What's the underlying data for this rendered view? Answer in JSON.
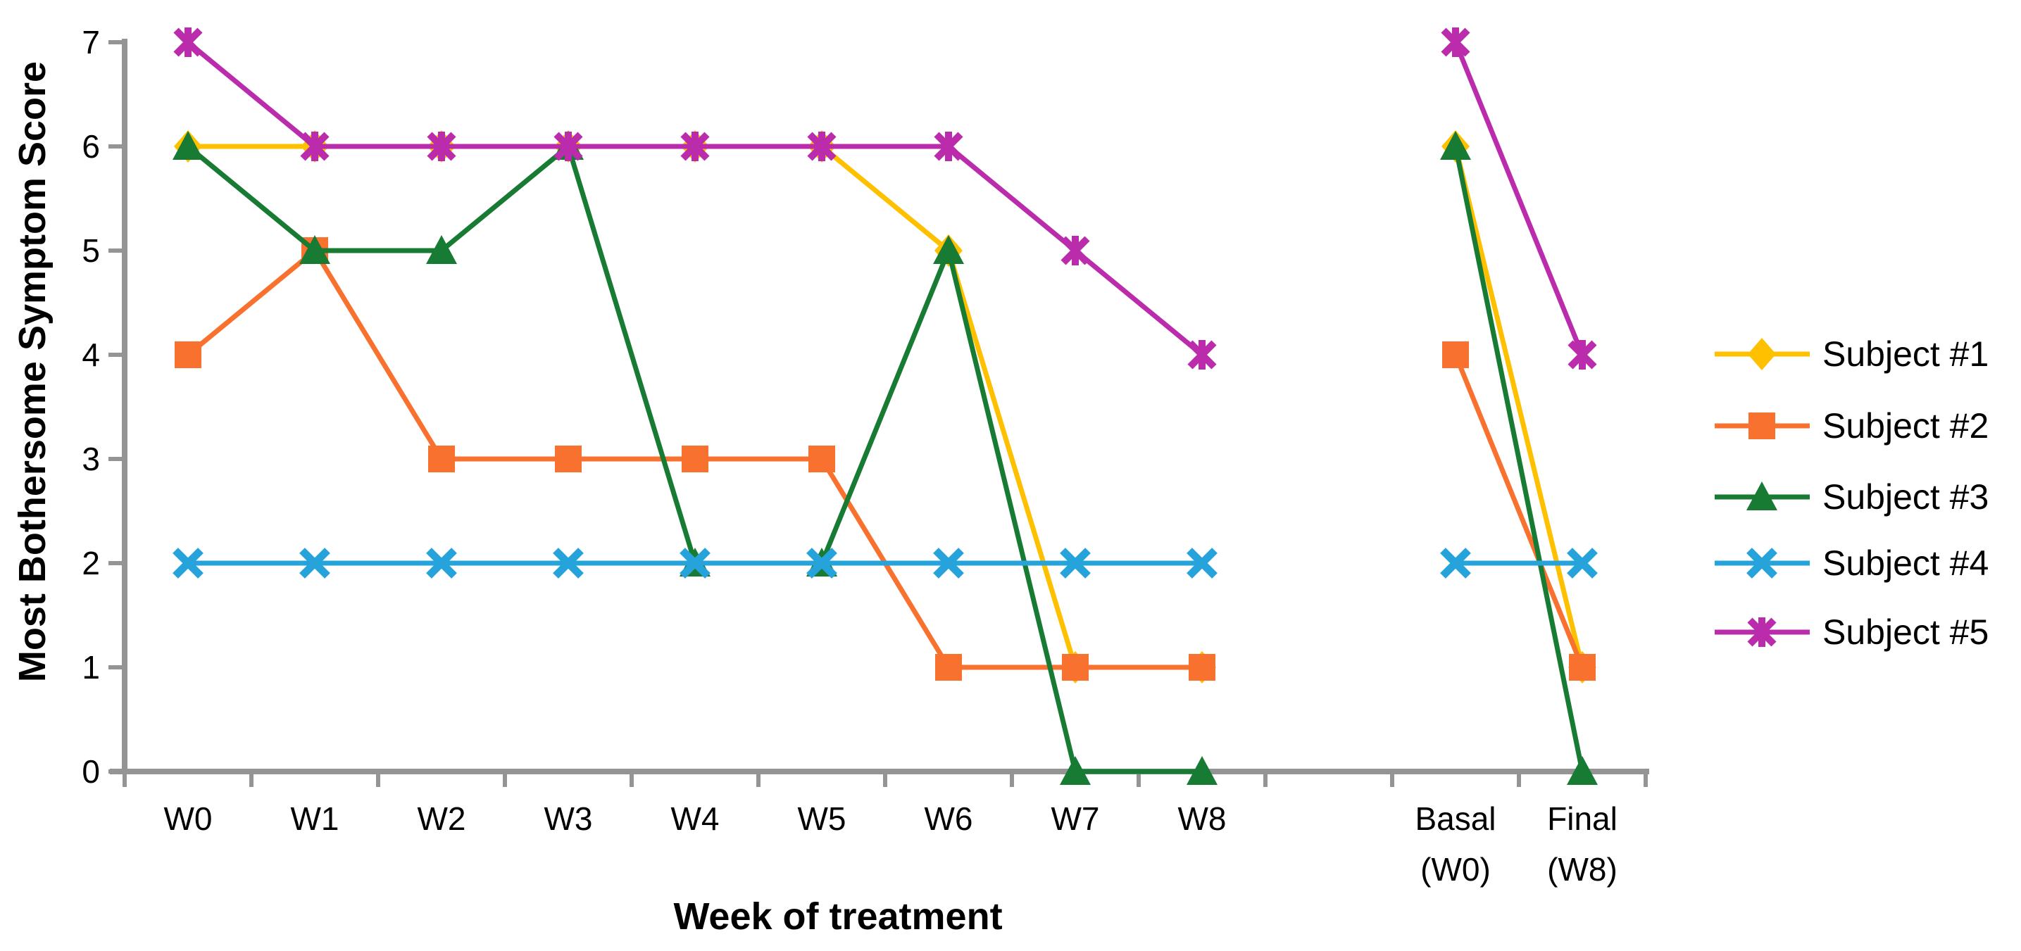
{
  "figure": {
    "background_color": "#FFFFFF",
    "axis_color": "#949494",
    "text_color": "#000000"
  },
  "chart_data": {
    "type": "line",
    "title": "",
    "xlabel": "Week of treatment",
    "ylabel": "Most Bothersome Symptom Score",
    "ylim": [
      0,
      7
    ],
    "yticks": [
      0,
      1,
      2,
      3,
      4,
      5,
      6,
      7
    ],
    "grid": false,
    "legend_position": "right",
    "categories": [
      "W0",
      "W1",
      "W2",
      "W3",
      "W4",
      "W5",
      "W6",
      "W7",
      "W8"
    ],
    "summary_categories": [
      {
        "line1": "Basal",
        "line2": "(W0)"
      },
      {
        "line1": "Final",
        "line2": "(W8)"
      }
    ],
    "series": [
      {
        "name": "Subject #1",
        "color": "#FFC000",
        "marker": "diamond",
        "values": [
          6,
          6,
          6,
          6,
          6,
          6,
          5,
          1,
          1
        ],
        "basal_final": [
          6,
          1
        ]
      },
      {
        "name": "Subject #2",
        "color": "#F9712E",
        "marker": "square",
        "values": [
          4,
          5,
          3,
          3,
          3,
          3,
          1,
          1,
          1
        ],
        "basal_final": [
          4,
          1
        ]
      },
      {
        "name": "Subject #3",
        "color": "#177B33",
        "marker": "triangle",
        "values": [
          6,
          5,
          5,
          6,
          2,
          2,
          5,
          0,
          0
        ],
        "basal_final": [
          6,
          0
        ]
      },
      {
        "name": "Subject #4",
        "color": "#27A3DB",
        "marker": "x",
        "values": [
          2,
          2,
          2,
          2,
          2,
          2,
          2,
          2,
          2
        ],
        "basal_final": [
          2,
          2
        ]
      },
      {
        "name": "Subject #5",
        "color": "#BA2CAC",
        "marker": "asterisk",
        "values": [
          7,
          6,
          6,
          6,
          6,
          6,
          6,
          5,
          4
        ],
        "basal_final": [
          7,
          4
        ]
      }
    ]
  }
}
